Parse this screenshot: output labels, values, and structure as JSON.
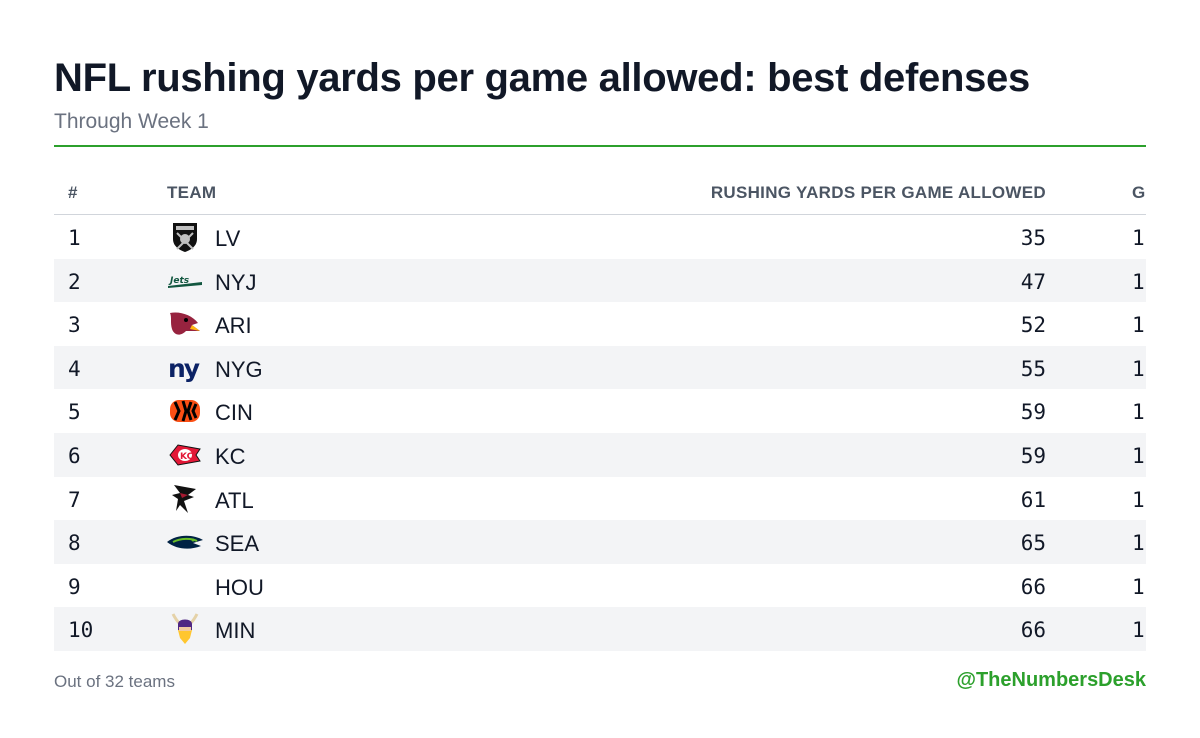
{
  "header": {
    "title": "NFL rushing yards per game allowed: best defenses",
    "subtitle": "Through Week 1"
  },
  "colors": {
    "accent": "#2ca02c",
    "stripe": "#f3f4f6"
  },
  "chart_data": {
    "type": "table",
    "columns": [
      "#",
      "TEAM",
      "RUSHING YARDS PER GAME ALLOWED",
      "G"
    ],
    "rows": [
      {
        "rank": "1",
        "team": "LV",
        "logo": "raiders-shield-icon",
        "value": "35",
        "games": "1"
      },
      {
        "rank": "2",
        "team": "NYJ",
        "logo": "jets-wordmark-icon",
        "value": "47",
        "games": "1"
      },
      {
        "rank": "3",
        "team": "ARI",
        "logo": "cardinal-head-icon",
        "value": "52",
        "games": "1"
      },
      {
        "rank": "4",
        "team": "NYG",
        "logo": "giants-ny-icon",
        "value": "55",
        "games": "1"
      },
      {
        "rank": "5",
        "team": "CIN",
        "logo": "bengals-stripes-icon",
        "value": "59",
        "games": "1"
      },
      {
        "rank": "6",
        "team": "KC",
        "logo": "chiefs-arrowhead-icon",
        "value": "59",
        "games": "1"
      },
      {
        "rank": "7",
        "team": "ATL",
        "logo": "falcon-icon",
        "value": "61",
        "games": "1"
      },
      {
        "rank": "8",
        "team": "SEA",
        "logo": "seahawk-icon",
        "value": "65",
        "games": "1"
      },
      {
        "rank": "9",
        "team": "HOU",
        "logo": "",
        "value": "66",
        "games": "1"
      },
      {
        "rank": "10",
        "team": "MIN",
        "logo": "viking-icon",
        "value": "66",
        "games": "1"
      }
    ]
  },
  "footer": {
    "note": "Out of 32 teams",
    "credit": "@TheNumbersDesk"
  }
}
